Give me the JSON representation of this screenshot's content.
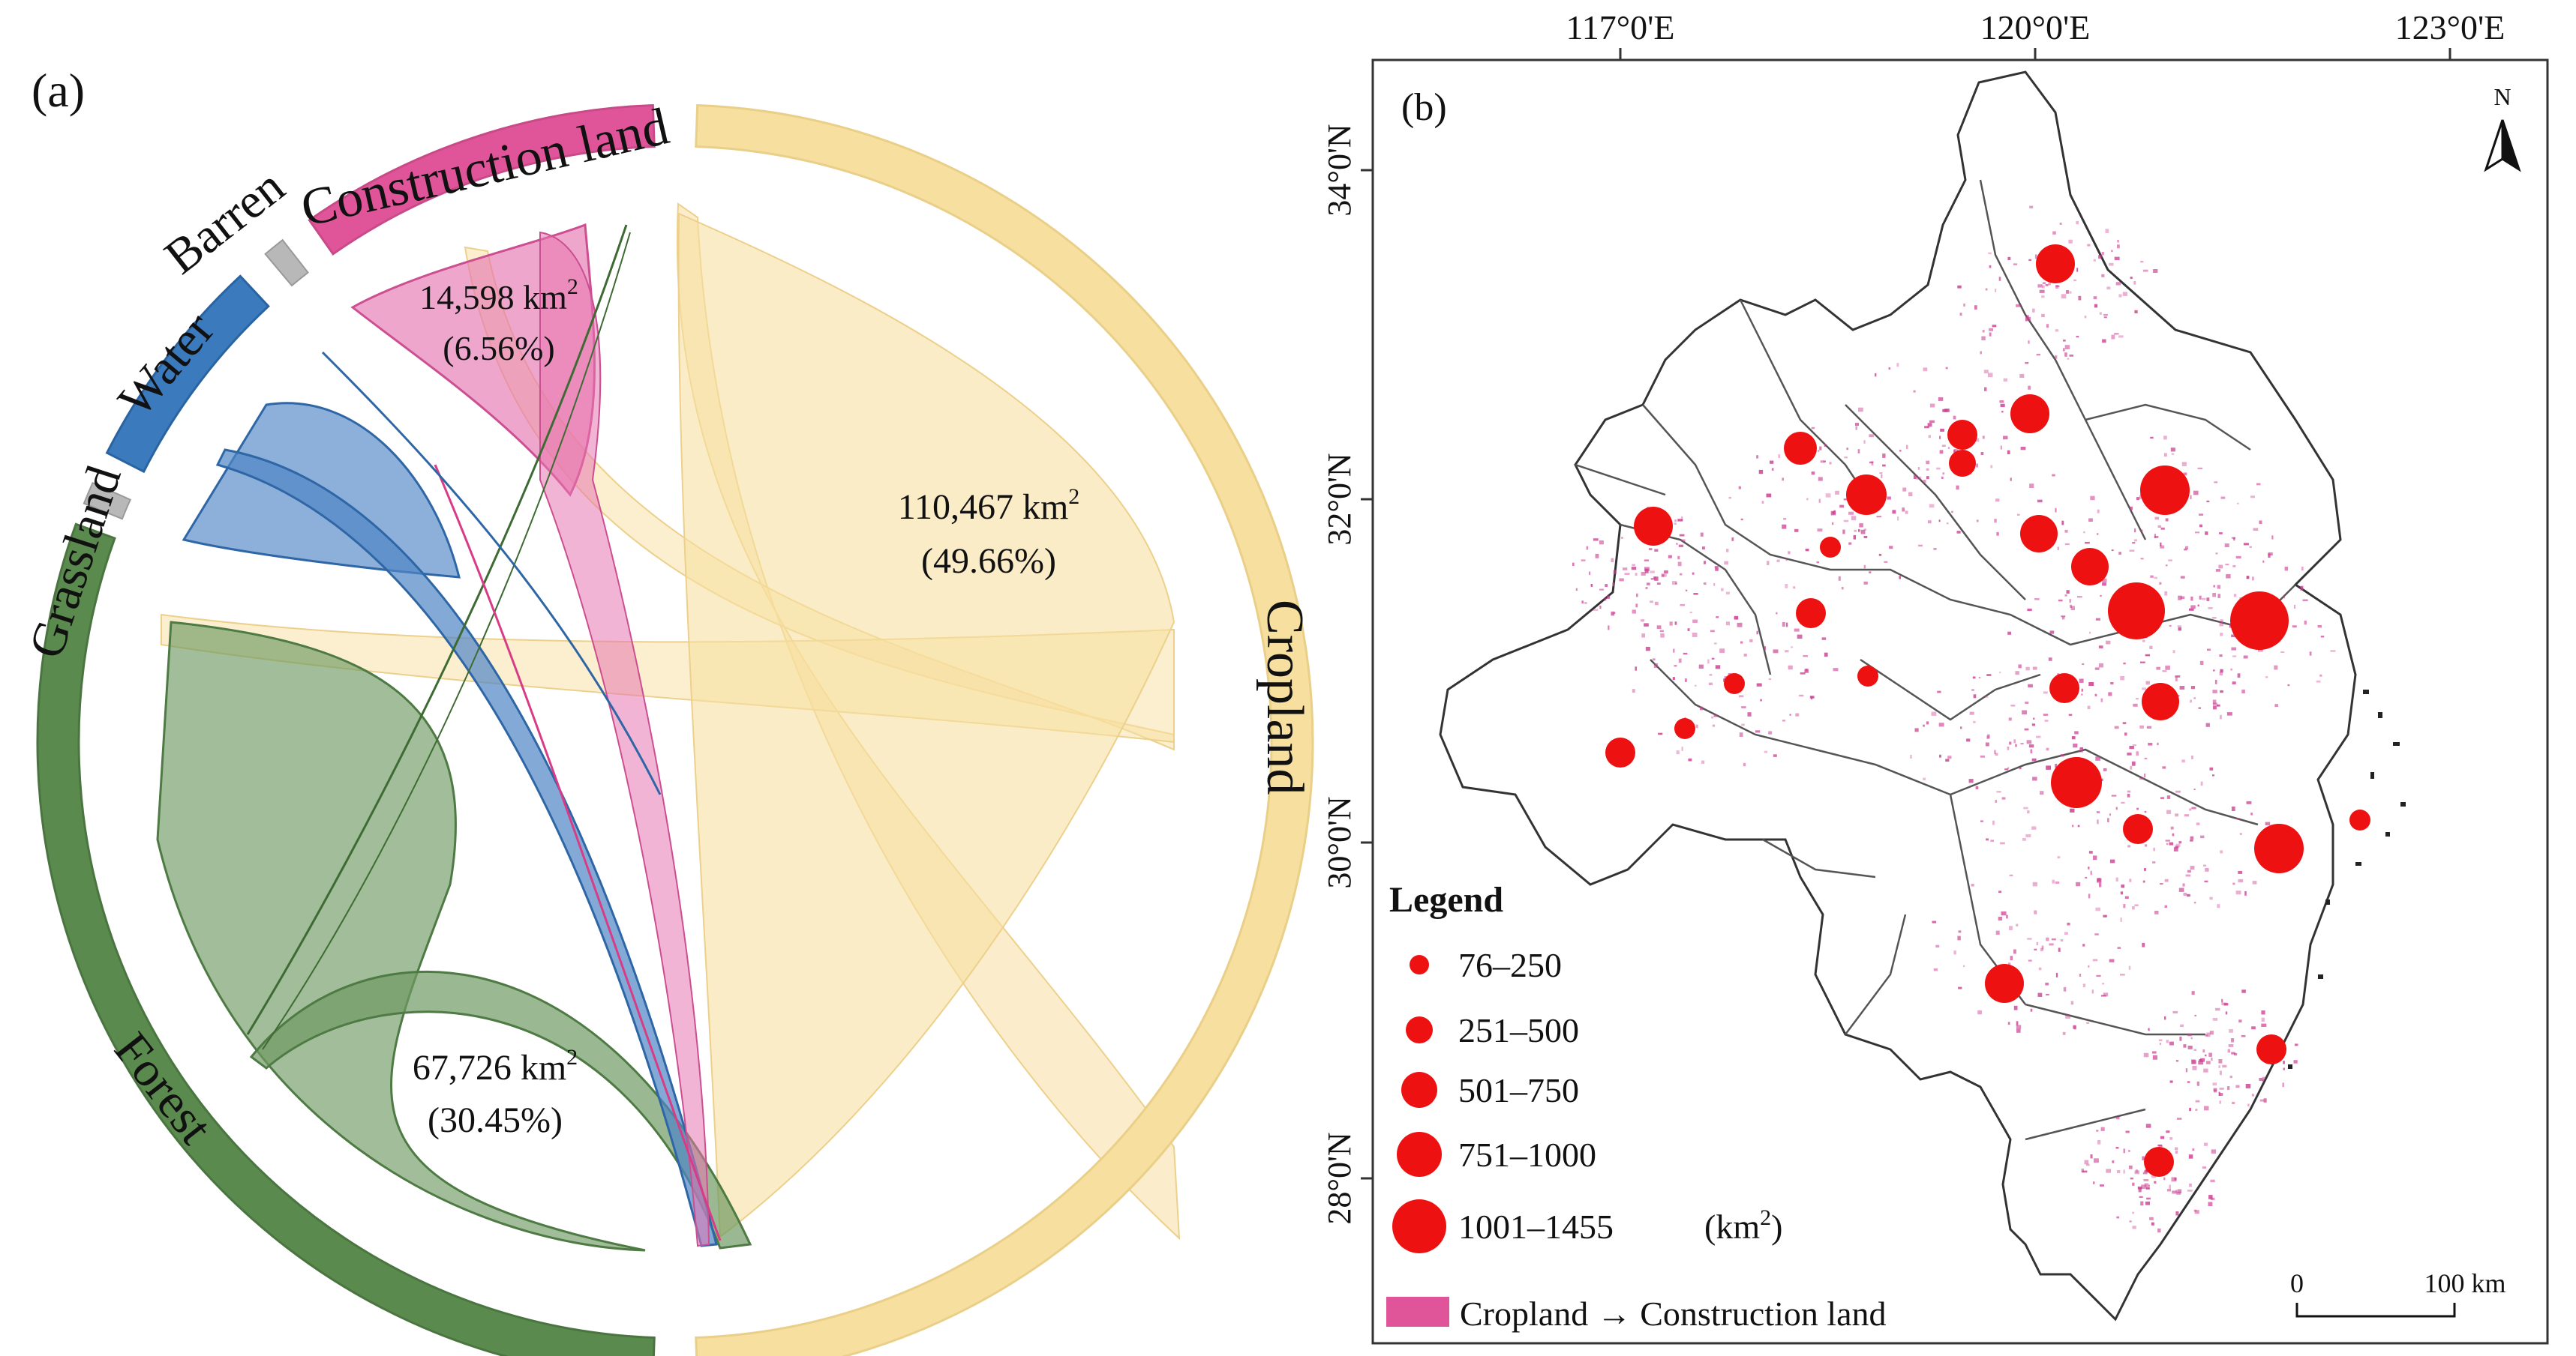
{
  "panel_a": {
    "label": "(a)",
    "sectors": {
      "construction": "Construction land",
      "barren": "Barren",
      "water": "Water",
      "grassland": "Grassland",
      "forest": "Forest",
      "cropland": "Cropland"
    },
    "flows": [
      {
        "value": "110,467 km",
        "sup": "2",
        "share": "(49.66%)"
      },
      {
        "value": "67,726 km",
        "sup": "2",
        "share": "(30.45%)"
      },
      {
        "value": "14,598 km",
        "sup": "2",
        "share": "(6.56%)"
      }
    ]
  },
  "panel_b": {
    "label": "(b)",
    "x_ticks": [
      "117°0'E",
      "120°0'E",
      "123°0'E"
    ],
    "y_ticks": [
      "34°0'N",
      "32°0'N",
      "30°0'N",
      "28°0'N"
    ],
    "north": "N",
    "legend": {
      "title": "Legend",
      "classes": [
        "76–250",
        "251–500",
        "501–750",
        "751–1000",
        "1001–1455"
      ],
      "unit_prefix": "(km",
      "unit_sup": "2",
      "unit_suffix": ")",
      "change": "Cropland → Construction land"
    },
    "scale": {
      "zero": "0",
      "end": "100 km"
    }
  },
  "colors": {
    "cropland": "#f7dfa0",
    "forest": "#5b8a4e",
    "water": "#3a7abd",
    "construction": "#e0559a",
    "barren": "#b8b8b8",
    "grassland": "#9ab06a",
    "circle": "#ee1111",
    "change_patch": "#cc3d90"
  }
}
